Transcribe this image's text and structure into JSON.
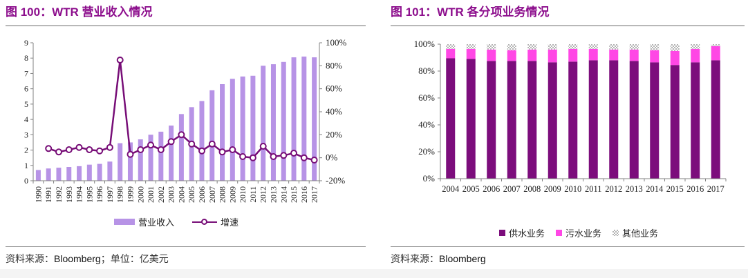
{
  "chart_data": [
    {
      "type": "bar+line",
      "title": "图 100：WTR 营业收入情况",
      "unit_note": "亿美元",
      "categories": [
        "1990",
        "1991",
        "1992",
        "1993",
        "1994",
        "1995",
        "1996",
        "1997",
        "1998",
        "1999",
        "2000",
        "2001",
        "2002",
        "2003",
        "2004",
        "2005",
        "2006",
        "2007",
        "2008",
        "2009",
        "2010",
        "2011",
        "2012",
        "2013",
        "2014",
        "2015",
        "2016",
        "2017"
      ],
      "series": [
        {
          "name": "营业收入",
          "type": "bar",
          "axis": "left",
          "color": "#b793e6",
          "values": [
            0.7,
            0.8,
            0.85,
            0.9,
            0.95,
            1.05,
            1.1,
            1.25,
            2.45,
            2.5,
            2.7,
            3.0,
            3.2,
            3.6,
            4.35,
            4.8,
            5.2,
            5.9,
            6.3,
            6.65,
            6.8,
            6.85,
            7.5,
            7.6,
            7.75,
            8.05,
            8.1,
            8.05
          ]
        },
        {
          "name": "增速",
          "type": "line",
          "axis": "right",
          "color": "#770d77",
          "marker": "open-circle",
          "values": [
            null,
            8,
            5,
            7,
            9,
            7,
            6,
            9,
            85,
            3,
            7,
            11,
            7,
            14,
            20,
            12,
            6,
            12,
            5,
            7,
            1,
            0,
            10,
            1,
            2,
            4,
            0,
            -2
          ]
        }
      ],
      "left_axis": {
        "min": 0,
        "max": 9,
        "tick_step": 1
      },
      "right_axis": {
        "min": -20,
        "max": 100,
        "tick_step": 20,
        "format": "percent"
      },
      "grid": false,
      "legend_position": "bottom",
      "source": {
        "prefix": "资料来源：",
        "name": "Bloomberg",
        "suffix": "；单位：亿美元"
      }
    },
    {
      "type": "stacked-bar-100pct",
      "title": "图 101：WTR 各分项业务情况",
      "categories": [
        "2004",
        "2005",
        "2006",
        "2007",
        "2008",
        "2009",
        "2010",
        "2011",
        "2012",
        "2013",
        "2014",
        "2015",
        "2016",
        "2017"
      ],
      "series": [
        {
          "name": "供水业务",
          "color": "#7c0d7c",
          "hatch": false,
          "values": [
            89.5,
            89,
            87.5,
            87.5,
            87.5,
            86.5,
            87,
            88,
            88,
            87.5,
            86.5,
            84.5,
            86.5,
            88
          ]
        },
        {
          "name": "污水业务",
          "color": "#ff47e5",
          "hatch": false,
          "values": [
            7,
            7.5,
            8.5,
            8,
            8.5,
            9.5,
            9.5,
            8.5,
            8,
            8.5,
            9,
            10.5,
            10,
            10.5
          ]
        },
        {
          "name": "其他业务",
          "color": "#c0c0c0",
          "hatch": true,
          "values": [
            3.5,
            3.5,
            4,
            4.5,
            4,
            4,
            3.5,
            3.5,
            4,
            4,
            4.5,
            5,
            3.5,
            1.5
          ]
        }
      ],
      "y_axis": {
        "min": 0,
        "max": 100,
        "tick_step": 20,
        "format": "percent"
      },
      "grid": false,
      "legend_position": "bottom",
      "source": {
        "prefix": "资料来源：",
        "name": "Bloomberg",
        "suffix": ""
      }
    }
  ]
}
